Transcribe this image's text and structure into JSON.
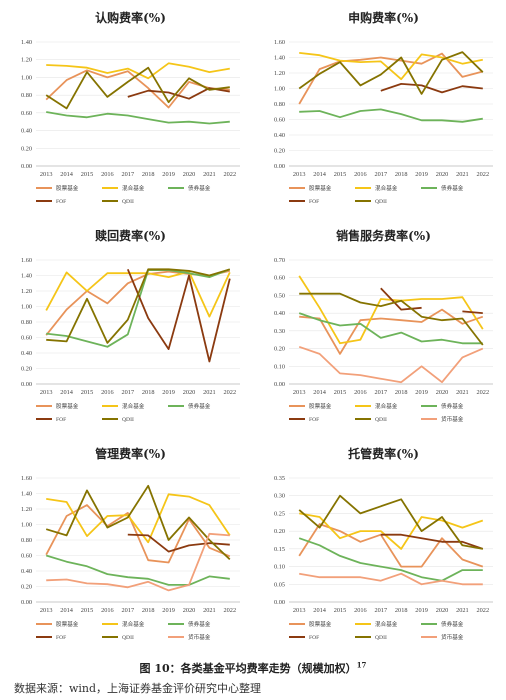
{
  "colors": {
    "股票基金": "#E8935A",
    "混合基金": "#F5C518",
    "债券基金": "#6DB35A",
    "FOF": "#8B3A10",
    "QDII": "#857300",
    "货币基金": "#F2A07A"
  },
  "chart_data": [
    {
      "type": "line",
      "title": "认购费率(%)",
      "x": [
        "2013",
        "2014",
        "2015",
        "2016",
        "2017",
        "2018",
        "2019",
        "2020",
        "2021",
        "2022"
      ],
      "ylim": [
        0,
        1.4
      ],
      "yticks": [
        "0.00",
        "0.20",
        "0.40",
        "0.60",
        "0.80",
        "1.00",
        "1.20",
        "1.40"
      ],
      "legend": [
        "股票基金",
        "混合基金",
        "债券基金",
        "FOF",
        "QDII"
      ],
      "series": [
        {
          "name": "股票基金",
          "values": [
            0.75,
            0.97,
            1.08,
            1.0,
            1.07,
            0.88,
            0.66,
            0.95,
            0.88,
            0.86
          ]
        },
        {
          "name": "混合基金",
          "values": [
            1.14,
            1.13,
            1.11,
            1.05,
            1.1,
            0.99,
            1.16,
            1.12,
            1.06,
            1.1
          ]
        },
        {
          "name": "债券基金",
          "values": [
            0.61,
            0.57,
            0.55,
            0.59,
            0.57,
            0.53,
            0.49,
            0.5,
            0.48,
            0.5
          ]
        },
        {
          "name": "FOF",
          "values": [
            null,
            null,
            null,
            null,
            0.78,
            0.85,
            0.83,
            0.76,
            0.88,
            0.84
          ]
        },
        {
          "name": "QDII",
          "values": [
            0.8,
            0.65,
            1.06,
            0.78,
            0.95,
            1.11,
            0.72,
            0.99,
            0.86,
            0.89
          ]
        }
      ]
    },
    {
      "type": "line",
      "title": "申购费率(%)",
      "x": [
        "2013",
        "2014",
        "2015",
        "2016",
        "2017",
        "2018",
        "2019",
        "2020",
        "2021",
        "2022"
      ],
      "ylim": [
        0,
        1.6
      ],
      "yticks": [
        "0.00",
        "0.20",
        "0.40",
        "0.60",
        "0.80",
        "1.00",
        "1.20",
        "1.40",
        "1.60"
      ],
      "legend": [
        "股票基金",
        "混合基金",
        "债券基金",
        "FOF",
        "QDII"
      ],
      "series": [
        {
          "name": "股票基金",
          "values": [
            0.8,
            1.25,
            1.35,
            1.37,
            1.4,
            1.36,
            1.32,
            1.45,
            1.15,
            1.22
          ]
        },
        {
          "name": "混合基金",
          "values": [
            1.46,
            1.43,
            1.36,
            1.34,
            1.35,
            1.12,
            1.44,
            1.4,
            1.32,
            1.37
          ]
        },
        {
          "name": "债券基金",
          "values": [
            0.7,
            0.71,
            0.63,
            0.71,
            0.73,
            0.67,
            0.59,
            0.59,
            0.57,
            0.61
          ]
        },
        {
          "name": "FOF",
          "values": [
            null,
            null,
            null,
            null,
            0.97,
            1.06,
            1.04,
            0.95,
            1.03,
            1.0
          ]
        },
        {
          "name": "QDII",
          "values": [
            1.0,
            1.19,
            1.34,
            1.04,
            1.18,
            1.4,
            0.93,
            1.37,
            1.47,
            1.21
          ]
        }
      ]
    },
    {
      "type": "line",
      "title": "赎回费率(%)",
      "x": [
        "2013",
        "2014",
        "2015",
        "2016",
        "2017",
        "2018",
        "2019",
        "2020",
        "2021",
        "2022"
      ],
      "ylim": [
        0,
        1.6
      ],
      "yticks": [
        "0.00",
        "0.20",
        "0.40",
        "0.60",
        "0.80",
        "1.00",
        "1.20",
        "1.40",
        "1.60"
      ],
      "legend": [
        "股票基金",
        "混合基金",
        "债券基金",
        "FOF",
        "QDII"
      ],
      "series": [
        {
          "name": "股票基金",
          "values": [
            0.63,
            0.96,
            1.2,
            1.04,
            1.3,
            1.42,
            1.45,
            1.42,
            1.4,
            1.46
          ]
        },
        {
          "name": "混合基金",
          "values": [
            0.95,
            1.44,
            1.2,
            1.43,
            1.43,
            1.43,
            1.38,
            1.45,
            0.87,
            1.44
          ]
        },
        {
          "name": "债券基金",
          "values": [
            0.65,
            0.62,
            0.55,
            0.48,
            0.64,
            1.47,
            1.47,
            1.43,
            1.38,
            1.48
          ]
        },
        {
          "name": "FOF",
          "values": [
            null,
            null,
            null,
            null,
            1.48,
            0.85,
            0.45,
            1.4,
            0.29,
            1.36
          ]
        },
        {
          "name": "QDII",
          "values": [
            0.57,
            0.55,
            1.1,
            0.53,
            0.83,
            1.48,
            1.48,
            1.46,
            1.4,
            1.48
          ]
        }
      ]
    },
    {
      "type": "line",
      "title": "销售服务费率(%)",
      "x": [
        "2013",
        "2014",
        "2015",
        "2016",
        "2017",
        "2018",
        "2019",
        "2020",
        "2021",
        "2022"
      ],
      "ylim": [
        0,
        0.7
      ],
      "yticks": [
        "0.00",
        "0.10",
        "0.20",
        "0.30",
        "0.40",
        "0.50",
        "0.60",
        "0.70"
      ],
      "legend": [
        "股票基金",
        "混合基金",
        "债券基金",
        "FOF",
        "QDII",
        "货币基金"
      ],
      "series": [
        {
          "name": "股票基金",
          "values": [
            0.38,
            0.37,
            0.17,
            0.36,
            0.37,
            0.36,
            0.35,
            0.42,
            0.34,
            0.38
          ]
        },
        {
          "name": "混合基金",
          "values": [
            0.61,
            0.43,
            0.23,
            0.25,
            0.48,
            0.47,
            0.48,
            0.48,
            0.49,
            0.31
          ]
        },
        {
          "name": "债券基金",
          "values": [
            0.4,
            0.36,
            0.33,
            0.34,
            0.26,
            0.29,
            0.24,
            0.25,
            0.23,
            0.23
          ]
        },
        {
          "name": "FOF",
          "values": [
            null,
            null,
            null,
            null,
            0.54,
            0.42,
            0.43,
            null,
            0.41,
            0.4
          ]
        },
        {
          "name": "QDII",
          "values": [
            0.51,
            0.51,
            0.51,
            0.46,
            0.44,
            0.47,
            0.38,
            0.36,
            0.37,
            0.22
          ]
        },
        {
          "name": "货币基金",
          "values": [
            0.21,
            0.17,
            0.06,
            0.05,
            0.03,
            0.01,
            0.1,
            0.01,
            0.15,
            0.2
          ]
        }
      ]
    },
    {
      "type": "line",
      "title": "管理费率(%)",
      "x": [
        "2013",
        "2014",
        "2015",
        "2016",
        "2017",
        "2018",
        "2019",
        "2020",
        "2021",
        "2022"
      ],
      "ylim": [
        0,
        1.6
      ],
      "yticks": [
        "0.00",
        "0.20",
        "0.40",
        "0.60",
        "0.80",
        "1.00",
        "1.20",
        "1.40",
        "1.60"
      ],
      "legend": [
        "股票基金",
        "混合基金",
        "债券基金",
        "FOF",
        "QDII",
        "货币基金"
      ],
      "series": [
        {
          "name": "股票基金",
          "values": [
            0.61,
            1.11,
            1.25,
            0.98,
            1.15,
            0.54,
            0.51,
            1.07,
            0.7,
            0.59
          ]
        },
        {
          "name": "混合基金",
          "values": [
            1.33,
            1.29,
            0.85,
            1.11,
            1.12,
            0.77,
            1.39,
            1.36,
            1.25,
            0.86
          ]
        },
        {
          "name": "债券基金",
          "values": [
            0.6,
            0.52,
            0.46,
            0.36,
            0.32,
            0.3,
            0.22,
            0.22,
            0.33,
            0.3
          ]
        },
        {
          "name": "FOF",
          "values": [
            null,
            null,
            null,
            null,
            0.87,
            0.86,
            0.65,
            0.73,
            0.76,
            0.74
          ]
        },
        {
          "name": "QDII",
          "values": [
            0.94,
            0.86,
            1.44,
            0.96,
            1.09,
            1.5,
            0.8,
            1.09,
            0.8,
            0.55
          ]
        },
        {
          "name": "货币基金",
          "values": [
            0.28,
            0.29,
            0.24,
            0.23,
            0.19,
            0.26,
            0.15,
            0.22,
            0.88,
            0.86
          ]
        }
      ]
    },
    {
      "type": "line",
      "title": "托管费率(%)",
      "x": [
        "2013",
        "2014",
        "2015",
        "2016",
        "2017",
        "2018",
        "2019",
        "2020",
        "2021",
        "2022"
      ],
      "ylim": [
        0,
        0.35
      ],
      "yticks": [
        "0.00",
        "0.05",
        "0.10",
        "0.15",
        "0.20",
        "0.25",
        "0.30",
        "0.35"
      ],
      "legend": [
        "股票基金",
        "混合基金",
        "债券基金",
        "FOF",
        "QDII",
        "货币基金"
      ],
      "series": [
        {
          "name": "股票基金",
          "values": [
            0.13,
            0.22,
            0.2,
            0.17,
            0.19,
            0.1,
            0.1,
            0.18,
            0.12,
            0.1
          ]
        },
        {
          "name": "混合基金",
          "values": [
            0.25,
            0.24,
            0.18,
            0.2,
            0.2,
            0.15,
            0.24,
            0.23,
            0.21,
            0.23
          ]
        },
        {
          "name": "债券基金",
          "values": [
            0.18,
            0.16,
            0.13,
            0.11,
            0.1,
            0.09,
            0.07,
            0.06,
            0.09,
            0.09
          ]
        },
        {
          "name": "FOF",
          "values": [
            null,
            null,
            null,
            null,
            0.19,
            0.19,
            0.18,
            0.17,
            0.17,
            0.15
          ]
        },
        {
          "name": "QDII",
          "values": [
            0.26,
            0.21,
            0.3,
            0.25,
            0.27,
            0.29,
            0.2,
            0.24,
            0.16,
            0.15
          ]
        },
        {
          "name": "货币基金",
          "values": [
            0.08,
            0.07,
            0.07,
            0.07,
            0.06,
            0.08,
            0.05,
            0.06,
            0.05,
            0.05
          ]
        }
      ]
    }
  ],
  "caption": {
    "prefix": "图 10：各类基金平均费率走势（规模加权）",
    "footnote": "17"
  },
  "source": "数据来源：wind，上海证券基金评价研究中心整理"
}
